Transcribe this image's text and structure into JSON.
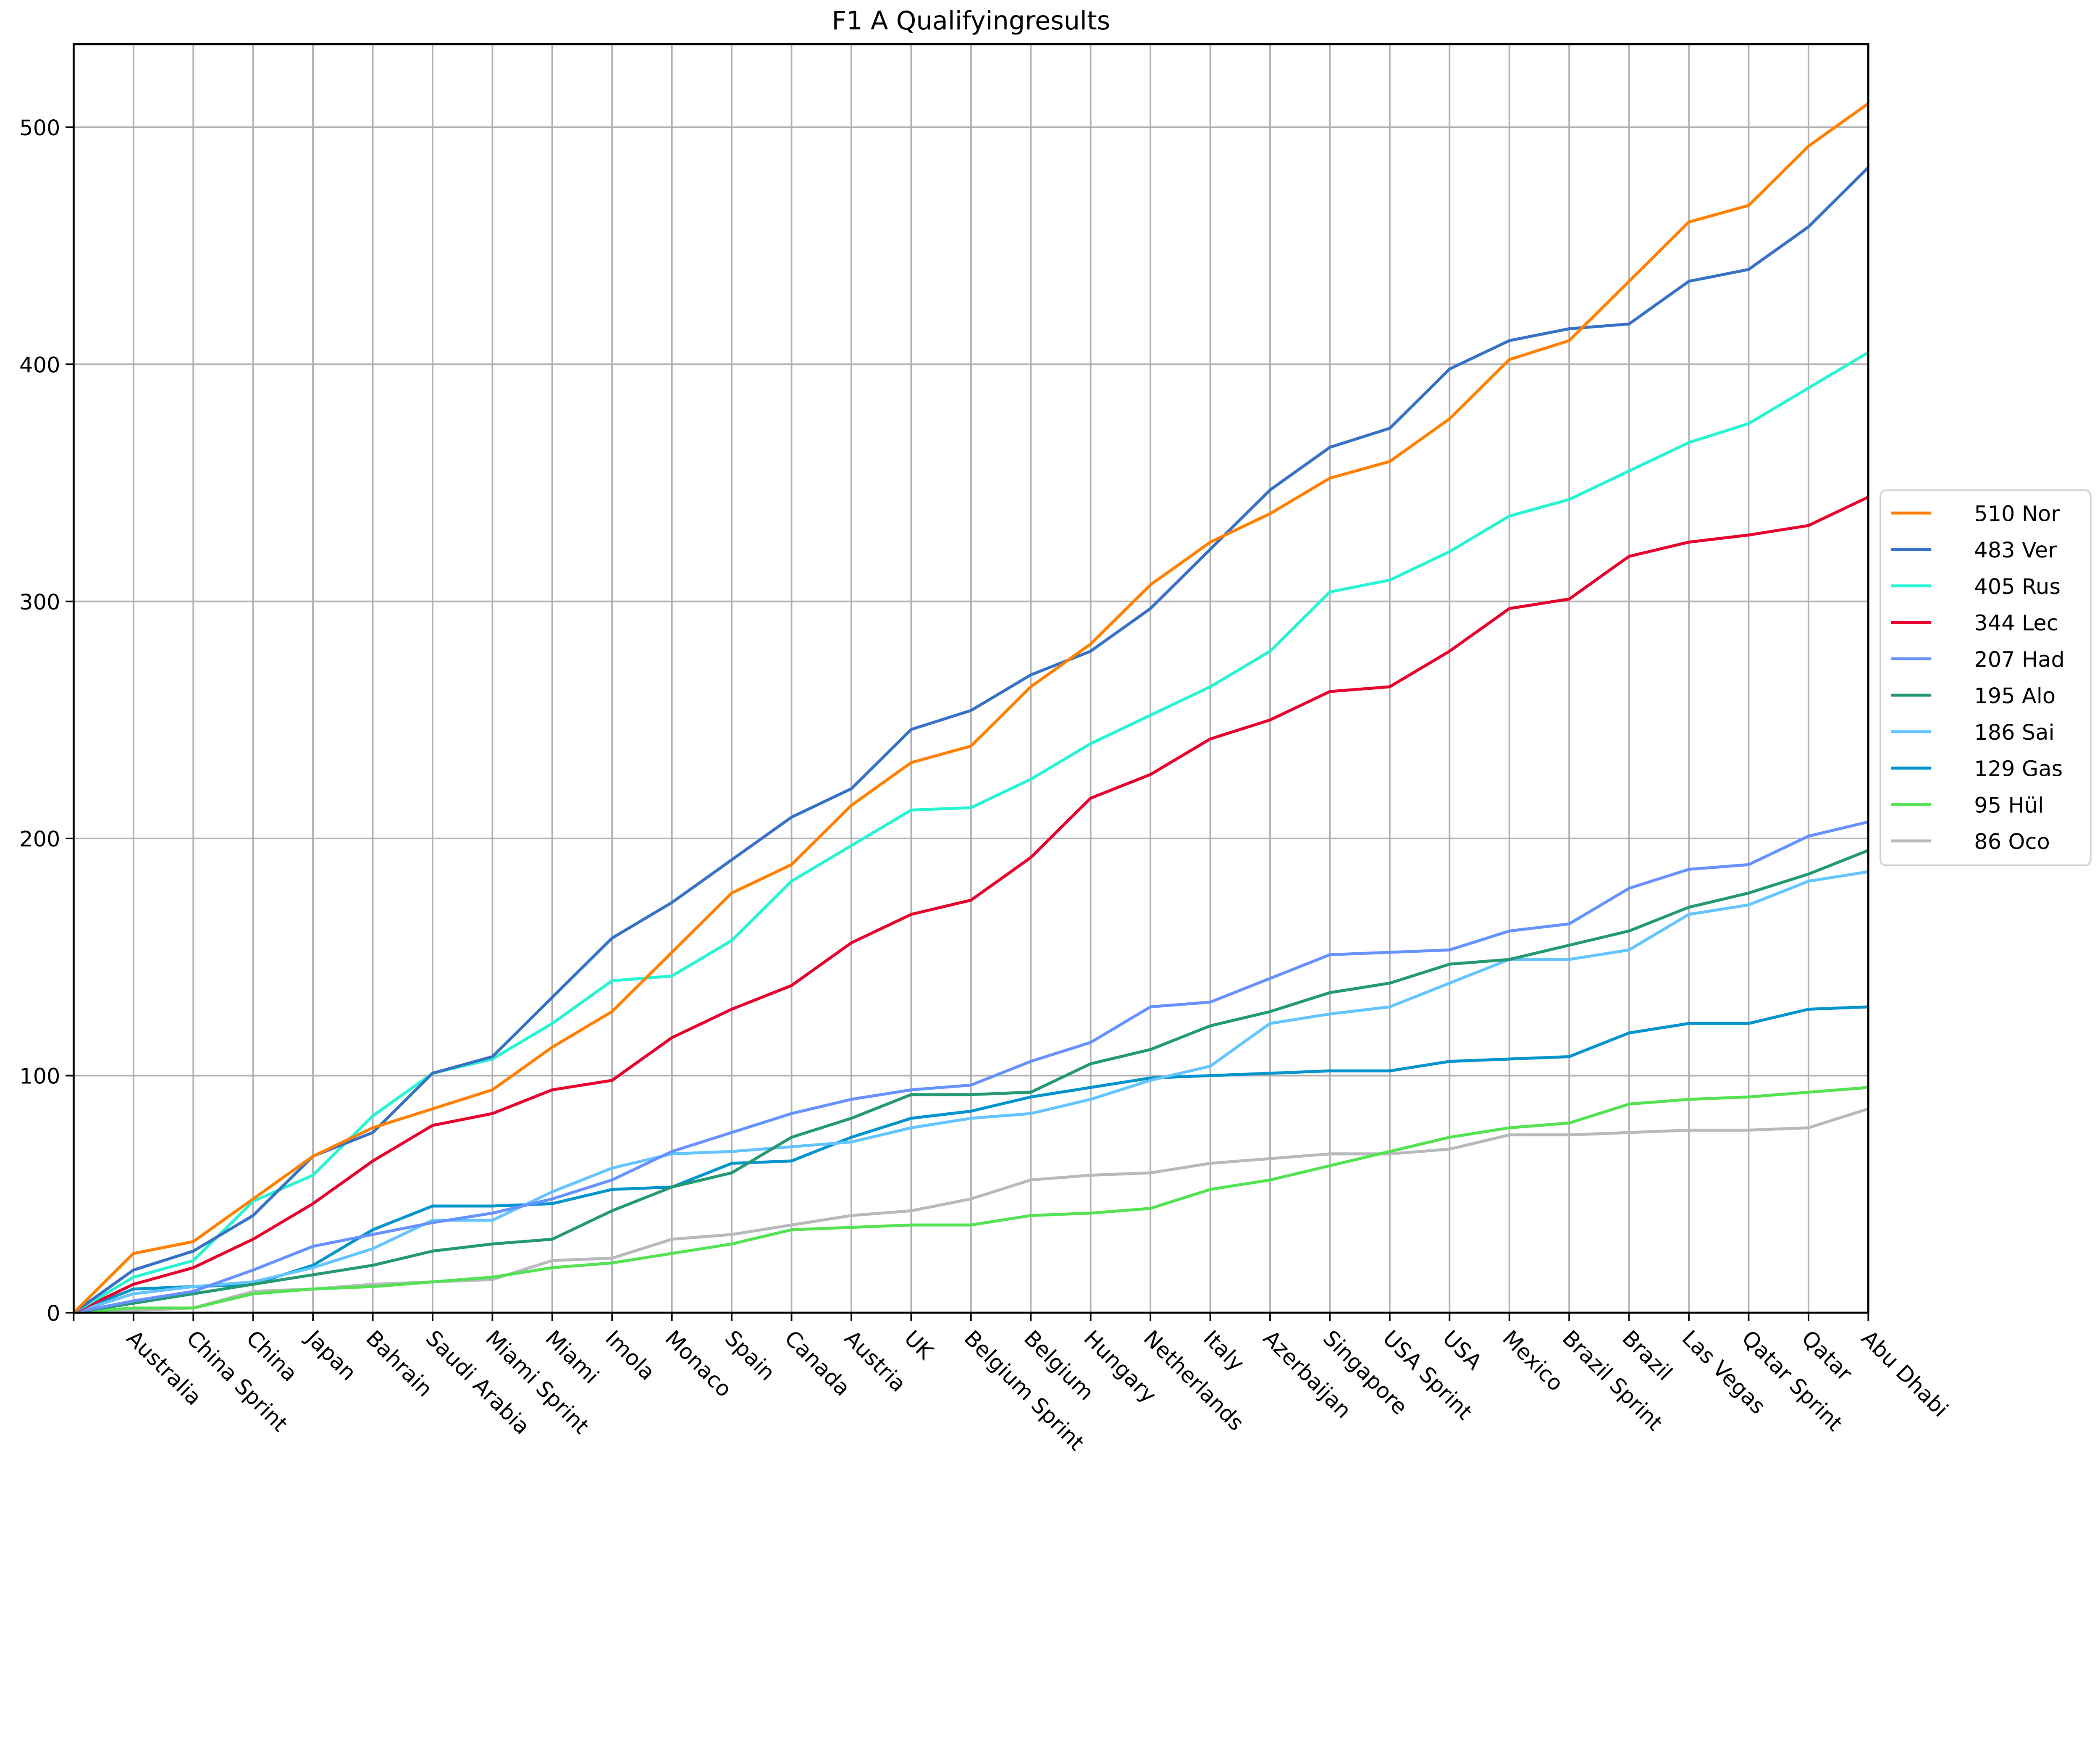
{
  "chart_data": {
    "type": "line",
    "title": "F1 A Qualifyingresults",
    "xlabel": "",
    "ylabel": "",
    "ylim": [
      0,
      535
    ],
    "yticks": [
      0,
      100,
      200,
      300,
      400,
      500
    ],
    "grid": true,
    "legend_placement": "center-right",
    "categories": [
      "",
      "Australia",
      "China Sprint",
      "China",
      "Japan",
      "Bahrain",
      "Saudi Arabia",
      "Miami Sprint",
      "Miami",
      "Imola",
      "Monaco",
      "Spain",
      "Canada",
      "Austria",
      "UK",
      "Belgium Sprint",
      "Belgium",
      "Hungary",
      "Netherlands",
      "Italy",
      "Azerbaijan",
      "Singapore",
      "USA Sprint",
      "USA",
      "Mexico",
      "Brazil Sprint",
      "Brazil",
      "Las Vegas",
      "Qatar Sprint",
      "Qatar",
      "Abu Dhabi"
    ],
    "series": [
      {
        "name": "510 Nor",
        "color": "#ff8000",
        "values": [
          0,
          25,
          30,
          48,
          66,
          78,
          86,
          94,
          112,
          127,
          152,
          177,
          189,
          214,
          232,
          239,
          264,
          282,
          307,
          325,
          337,
          352,
          359,
          377,
          402,
          410,
          435,
          460,
          467,
          492,
          510
        ]
      },
      {
        "name": "483 Ver",
        "color": "#3671c6",
        "values": [
          0,
          18,
          26,
          41,
          66,
          76,
          101,
          108,
          133,
          158,
          173,
          191,
          209,
          221,
          246,
          254,
          269,
          279,
          297,
          322,
          347,
          365,
          373,
          398,
          410,
          415,
          417,
          435,
          440,
          458,
          483
        ]
      },
      {
        "name": "405 Rus",
        "color": "#27f4d2",
        "values": [
          0,
          15,
          22,
          47,
          58,
          83,
          101,
          107,
          122,
          140,
          142,
          157,
          182,
          197,
          212,
          213,
          225,
          240,
          252,
          264,
          279,
          304,
          309,
          321,
          336,
          343,
          355,
          367,
          375,
          390,
          405
        ]
      },
      {
        "name": "344 Lec",
        "color": "#e8002d",
        "values": [
          0,
          12,
          19,
          31,
          46,
          64,
          79,
          84,
          94,
          98,
          116,
          128,
          138,
          156,
          168,
          174,
          192,
          217,
          227,
          242,
          250,
          262,
          264,
          279,
          297,
          301,
          319,
          325,
          328,
          332,
          344
        ]
      },
      {
        "name": "207 Had",
        "color": "#6692ff",
        "values": [
          0,
          5,
          9,
          18,
          28,
          33,
          38,
          42,
          48,
          56,
          68,
          76,
          84,
          90,
          94,
          96,
          106,
          114,
          129,
          131,
          141,
          151,
          152,
          153,
          161,
          164,
          179,
          187,
          189,
          201,
          207
        ]
      },
      {
        "name": "195 Alo",
        "color": "#229971",
        "values": [
          0,
          4,
          8,
          12,
          16,
          20,
          26,
          29,
          31,
          43,
          53,
          59,
          74,
          82,
          92,
          92,
          93,
          105,
          111,
          121,
          127,
          135,
          139,
          147,
          149,
          155,
          161,
          171,
          177,
          185,
          195
        ]
      },
      {
        "name": "186 Sai",
        "color": "#64c4ff",
        "values": [
          0,
          8,
          11,
          13,
          19,
          27,
          39,
          39,
          51,
          61,
          67,
          68,
          70,
          72,
          78,
          82,
          84,
          90,
          98,
          104,
          122,
          126,
          129,
          139,
          149,
          149,
          153,
          168,
          172,
          182,
          186
        ]
      },
      {
        "name": "129 Gas",
        "color": "#0093cc",
        "values": [
          0,
          10,
          11,
          12,
          20,
          35,
          45,
          45,
          46,
          52,
          53,
          63,
          64,
          74,
          82,
          85,
          91,
          95,
          99,
          100,
          101,
          102,
          102,
          106,
          107,
          108,
          118,
          122,
          122,
          128,
          129
        ]
      },
      {
        "name": " 95 Hül",
        "color": "#52e252",
        "values": [
          0,
          2,
          2,
          8,
          10,
          11,
          13,
          15,
          19,
          21,
          25,
          29,
          35,
          36,
          37,
          37,
          41,
          42,
          44,
          52,
          56,
          62,
          68,
          74,
          78,
          80,
          88,
          90,
          91,
          93,
          95
        ]
      },
      {
        "name": " 86 Oco",
        "color": "#b6babd",
        "values": [
          0,
          1,
          2,
          9,
          10,
          12,
          13,
          14,
          22,
          23,
          31,
          33,
          37,
          41,
          43,
          48,
          56,
          58,
          59,
          63,
          65,
          67,
          67,
          69,
          75,
          75,
          76,
          77,
          77,
          78,
          86
        ]
      }
    ]
  }
}
